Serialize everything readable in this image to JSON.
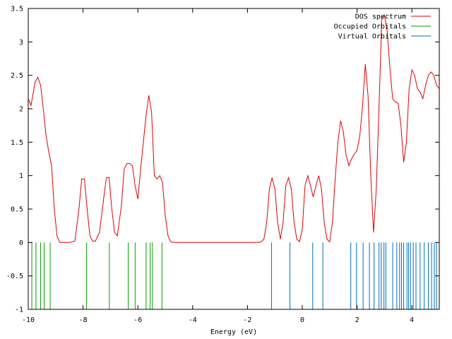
{
  "chart_data": {
    "type": "line",
    "title": "",
    "xlabel": "Energy (eV)",
    "ylabel": "",
    "xlim": [
      -10,
      5
    ],
    "ylim": [
      -1,
      3.5
    ],
    "grid": false,
    "legend_position": "top-right",
    "x_ticks": [
      -10,
      -8,
      -6,
      -4,
      -2,
      0,
      2,
      4
    ],
    "x_tick_labels": [
      "-10",
      "-8",
      "-6",
      "-4",
      "-2",
      "0",
      "2",
      "4"
    ],
    "y_ticks": [
      -1,
      -0.5,
      0,
      0.5,
      1,
      1.5,
      2,
      2.5,
      3,
      3.5
    ],
    "y_tick_labels": [
      "-1",
      "-0.5",
      "0",
      "0.5",
      "1",
      "1.5",
      "2",
      "2.5",
      "3",
      "3.5"
    ],
    "series": [
      {
        "name": "DOS spectrum",
        "color": "#e00000",
        "kind": "line",
        "x": [
          -10,
          -9.9,
          -9.75,
          -9.65,
          -9.55,
          -9.45,
          -9.35,
          -9.25,
          -9.15,
          -9.05,
          -8.95,
          -8.85,
          -8.75,
          -8.5,
          -8.3,
          -8.15,
          -8.05,
          -7.95,
          -7.85,
          -7.75,
          -7.65,
          -7.55,
          -7.4,
          -7.25,
          -7.15,
          -7.05,
          -6.95,
          -6.85,
          -6.75,
          -6.6,
          -6.5,
          -6.4,
          -6.3,
          -6.2,
          -6.1,
          -6.0,
          -5.9,
          -5.8,
          -5.7,
          -5.6,
          -5.5,
          -5.4,
          -5.3,
          -5.2,
          -5.1,
          -5.0,
          -4.9,
          -4.8,
          -4.7,
          -4.5,
          -4.0,
          -3.0,
          -2.0,
          -1.6,
          -1.5,
          -1.4,
          -1.3,
          -1.2,
          -1.1,
          -1.0,
          -0.9,
          -0.8,
          -0.7,
          -0.6,
          -0.5,
          -0.4,
          -0.3,
          -0.2,
          -0.1,
          0.0,
          0.1,
          0.2,
          0.3,
          0.4,
          0.5,
          0.6,
          0.7,
          0.8,
          0.9,
          1.0,
          1.1,
          1.2,
          1.3,
          1.4,
          1.5,
          1.6,
          1.7,
          1.8,
          1.9,
          2.0,
          2.1,
          2.2,
          2.3,
          2.4,
          2.5,
          2.6,
          2.7,
          2.8,
          2.9,
          3.0,
          3.1,
          3.2,
          3.3,
          3.4,
          3.5,
          3.6,
          3.7,
          3.8,
          3.9,
          4.0,
          4.1,
          4.2,
          4.3,
          4.4,
          4.5,
          4.6,
          4.7,
          4.8,
          4.9,
          5.0
        ],
        "y": [
          2.15,
          2.05,
          2.4,
          2.47,
          2.35,
          2.0,
          1.6,
          1.35,
          1.15,
          0.5,
          0.1,
          0.0,
          0.0,
          0.0,
          0.02,
          0.5,
          0.95,
          0.95,
          0.5,
          0.1,
          0.02,
          0.02,
          0.15,
          0.65,
          0.97,
          0.97,
          0.5,
          0.15,
          0.1,
          0.55,
          1.1,
          1.18,
          1.18,
          1.15,
          0.85,
          0.65,
          1.1,
          1.5,
          1.9,
          2.2,
          1.95,
          1.0,
          0.95,
          1.0,
          0.9,
          0.4,
          0.1,
          0.01,
          0.0,
          0.0,
          0.0,
          0.0,
          0.0,
          0.0,
          0.01,
          0.05,
          0.3,
          0.8,
          0.97,
          0.8,
          0.3,
          0.05,
          0.3,
          0.85,
          0.97,
          0.8,
          0.3,
          0.05,
          0.01,
          0.2,
          0.85,
          1.0,
          0.85,
          0.68,
          0.85,
          1.0,
          0.8,
          0.3,
          0.05,
          0.01,
          0.3,
          0.95,
          1.5,
          1.82,
          1.65,
          1.3,
          1.15,
          1.25,
          1.32,
          1.38,
          1.6,
          2.05,
          2.67,
          2.2,
          1.0,
          0.15,
          0.8,
          2.0,
          3.35,
          3.4,
          3.15,
          2.6,
          2.15,
          2.1,
          2.08,
          1.75,
          1.2,
          1.5,
          2.3,
          2.58,
          2.5,
          2.3,
          2.25,
          2.15,
          2.35,
          2.5,
          2.55,
          2.5,
          2.35,
          2.3
        ],
        "_note_ignored": ""
      },
      {
        "name": "Occupied Orbitals",
        "color": "#00a000",
        "kind": "impulse",
        "x": [
          -9.87,
          -9.72,
          -9.55,
          -9.42,
          -9.2,
          -7.87,
          -7.04,
          -6.35,
          -6.1,
          -5.7,
          -5.55,
          -5.47,
          -5.12
        ],
        "y": [
          -1,
          -1,
          -1,
          -1,
          -1,
          -1,
          -1,
          -1,
          -1,
          -1,
          -1,
          -1,
          -1
        ]
      },
      {
        "name": "Virtual Orbitals",
        "color": "#0070c0",
        "kind": "impulse",
        "x": [
          -1.12,
          -0.45,
          0.38,
          0.75,
          1.77,
          1.98,
          2.22,
          2.45,
          2.62,
          2.8,
          2.88,
          2.98,
          3.05,
          3.3,
          3.45,
          3.55,
          3.62,
          3.7,
          3.82,
          3.88,
          3.95,
          4.05,
          4.15,
          4.3,
          4.45,
          4.6,
          4.72,
          4.82,
          4.9
        ],
        "y": [
          -1,
          -1,
          -1,
          -1,
          -1,
          -1,
          -1,
          -1,
          -1,
          -1,
          -1,
          -1,
          -1,
          -1,
          -1,
          -1,
          -1,
          -1,
          -1,
          -1,
          -1,
          -1,
          -1,
          -1,
          -1,
          -1,
          -1,
          -1,
          -1
        ]
      }
    ]
  }
}
